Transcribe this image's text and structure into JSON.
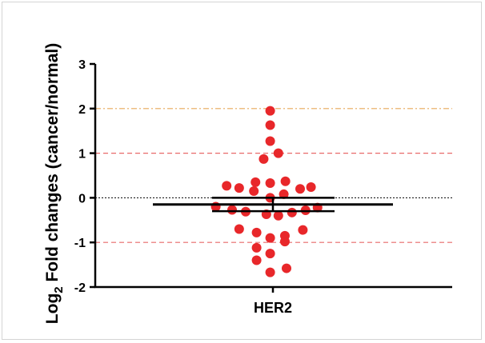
{
  "chart_data": {
    "type": "scatter",
    "categories": [
      "HER2"
    ],
    "ylabel_main": "Log",
    "ylabel_sub": "2",
    "ylabel_rest": " Fold changes (cancer/normal)",
    "ylim": [
      -2,
      3
    ],
    "yticks": [
      "3",
      "2",
      "1",
      "0",
      "-1",
      "-2"
    ],
    "yticks_values": [
      3,
      2,
      1,
      0,
      -1,
      -2
    ],
    "grid": false,
    "reference_lines": [
      {
        "y": 2,
        "color": "#e8a85a",
        "style": "dash-dot"
      },
      {
        "y": 1,
        "color": "#e86a6a",
        "style": "dashed"
      },
      {
        "y": 0,
        "color": "#000000",
        "style": "dotted"
      },
      {
        "y": -1,
        "color": "#e86a6a",
        "style": "dashed"
      }
    ],
    "summary": {
      "mean": -0.15,
      "error_upper": 0.0,
      "error_lower": -0.3
    },
    "point_color": "#e8272a",
    "points": [
      {
        "x": -0.05,
        "y": 1.95
      },
      {
        "x": -0.05,
        "y": 1.63
      },
      {
        "x": -0.05,
        "y": 1.27
      },
      {
        "x": 0.1,
        "y": 1.0
      },
      {
        "x": -0.17,
        "y": 0.87
      },
      {
        "x": -0.85,
        "y": 0.27
      },
      {
        "x": -0.62,
        "y": 0.22
      },
      {
        "x": -0.32,
        "y": 0.35
      },
      {
        "x": -0.05,
        "y": 0.33
      },
      {
        "x": 0.23,
        "y": 0.37
      },
      {
        "x": 0.5,
        "y": 0.2
      },
      {
        "x": 0.7,
        "y": 0.24
      },
      {
        "x": -0.35,
        "y": 0.15
      },
      {
        "x": 0.2,
        "y": 0.08
      },
      {
        "x": -0.05,
        "y": 0.0
      },
      {
        "x": -1.05,
        "y": -0.2
      },
      {
        "x": -0.75,
        "y": -0.27
      },
      {
        "x": -0.5,
        "y": -0.31
      },
      {
        "x": -0.12,
        "y": -0.37
      },
      {
        "x": 0.1,
        "y": -0.4
      },
      {
        "x": 0.35,
        "y": -0.33
      },
      {
        "x": 0.6,
        "y": -0.28
      },
      {
        "x": 0.82,
        "y": -0.22
      },
      {
        "x": -0.62,
        "y": -0.7
      },
      {
        "x": -0.3,
        "y": -0.78
      },
      {
        "x": 0.55,
        "y": -0.72
      },
      {
        "x": 0.22,
        "y": -0.85
      },
      {
        "x": -0.05,
        "y": -0.9
      },
      {
        "x": 0.22,
        "y": -0.98
      },
      {
        "x": -0.3,
        "y": -1.12
      },
      {
        "x": -0.05,
        "y": -1.25
      },
      {
        "x": -0.3,
        "y": -1.4
      },
      {
        "x": 0.25,
        "y": -1.58
      },
      {
        "x": -0.05,
        "y": -1.67
      }
    ]
  }
}
